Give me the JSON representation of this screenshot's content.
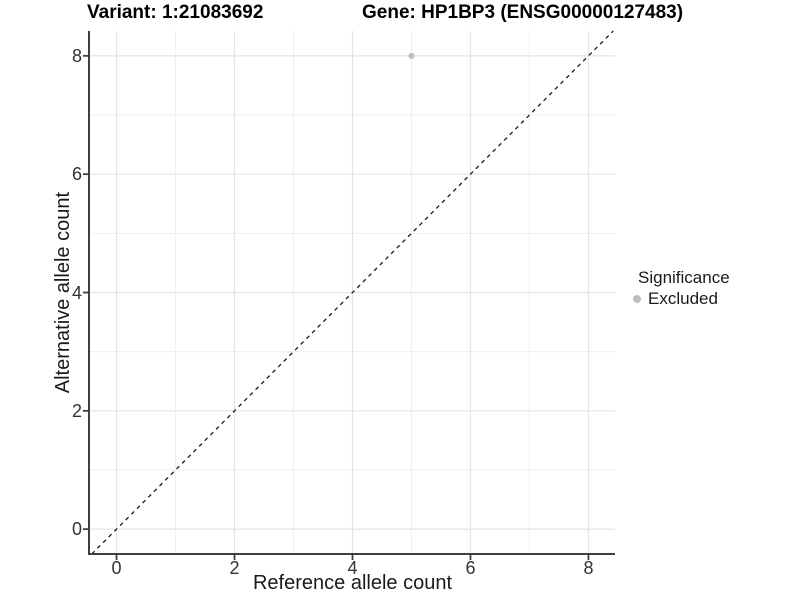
{
  "chart_data": {
    "type": "scatter",
    "titles": {
      "left": "Variant: 1:21083692",
      "right": "Gene: HP1BP3 (ENSG00000127483)"
    },
    "xlabel": "Reference allele count",
    "ylabel": "Alternative allele count",
    "xlim": [
      -0.45,
      8.45
    ],
    "ylim": [
      -0.42,
      8.42
    ],
    "xticks": [
      0,
      2,
      4,
      6,
      8
    ],
    "yticks": [
      0,
      2,
      4,
      6,
      8
    ],
    "x_minor_ticks": [
      1,
      3,
      5,
      7
    ],
    "y_minor_ticks": [
      1,
      3,
      5,
      7
    ],
    "grid": "major+minor",
    "legend": {
      "title": "Significance",
      "position": "right",
      "items": [
        {
          "label": "Excluded",
          "color": "#bdbdbd"
        }
      ]
    },
    "series": [
      {
        "name": "Excluded",
        "color": "#bdbdbd",
        "points": [
          {
            "x": 5,
            "y": 8
          }
        ]
      }
    ],
    "reference_line": {
      "type": "identity y=x",
      "style": "dashed",
      "color": "#1a1a1a"
    }
  },
  "colors": {
    "background": "#ffffff",
    "grid_major": "#e4e4e4",
    "grid_minor": "#efefef",
    "axis_line": "#3f3f3f",
    "tick_label": "#333333",
    "text": "#1a1a1a",
    "point": "#bdbdbd"
  }
}
